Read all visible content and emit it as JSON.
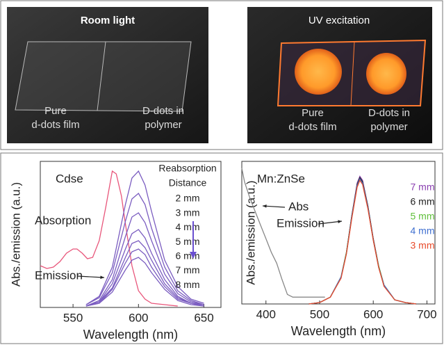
{
  "photos": [
    {
      "title": "Room light",
      "labels": [
        [
          "Pure",
          "d-dots film"
        ],
        [
          "D-dots in",
          "polymer"
        ]
      ]
    },
    {
      "title": "UV excitation",
      "labels": [
        [
          "Pure",
          "d-dots film"
        ],
        [
          "D-dots in",
          "polymer"
        ]
      ]
    }
  ],
  "chart_data": [
    {
      "type": "line",
      "title": "Cdse",
      "x_label": "Wavelength (nm)",
      "y_label": "Abs./emission (a.u.)",
      "legend_title": [
        "Reabsorption",
        "Distance"
      ],
      "annotations": [
        "Emission"
      ],
      "xlim": [
        525,
        663
      ],
      "xticks": [
        550,
        600,
        650
      ],
      "ylim": [
        0,
        1.05
      ],
      "series": [
        {
          "name": "Absorption",
          "color": "#e8557a",
          "x": [
            525,
            530,
            535,
            540,
            545,
            550,
            553,
            557,
            561,
            565,
            570,
            575,
            580,
            583,
            587,
            590,
            595,
            600,
            605,
            610,
            620,
            630
          ],
          "values": [
            0.3,
            0.28,
            0.29,
            0.33,
            0.39,
            0.42,
            0.42,
            0.39,
            0.35,
            0.36,
            0.48,
            0.72,
            0.98,
            0.96,
            0.8,
            0.6,
            0.3,
            0.12,
            0.06,
            0.03,
            0.02,
            0.01
          ]
        },
        {
          "name": "2 mm",
          "color": "#7a5cc0",
          "x": [
            560,
            570,
            580,
            590,
            595,
            600,
            605,
            610,
            620,
            630,
            640,
            650
          ],
          "values": [
            0.02,
            0.08,
            0.29,
            0.74,
            0.93,
            0.98,
            0.88,
            0.69,
            0.34,
            0.15,
            0.06,
            0.03
          ]
        },
        {
          "name": "3 mm",
          "color": "#7a5cc0",
          "x": [
            560,
            570,
            580,
            590,
            595,
            600,
            605,
            610,
            620,
            630,
            640,
            650
          ],
          "values": [
            0.02,
            0.07,
            0.25,
            0.62,
            0.78,
            0.82,
            0.74,
            0.57,
            0.29,
            0.12,
            0.05,
            0.02
          ]
        },
        {
          "name": "4 mm",
          "color": "#7a5cc0",
          "x": [
            560,
            570,
            580,
            590,
            595,
            600,
            605,
            610,
            620,
            630,
            640,
            650
          ],
          "values": [
            0.01,
            0.05,
            0.2,
            0.51,
            0.65,
            0.68,
            0.61,
            0.48,
            0.24,
            0.1,
            0.04,
            0.02
          ]
        },
        {
          "name": "5 mm",
          "color": "#7a5cc0",
          "x": [
            560,
            570,
            580,
            590,
            595,
            600,
            605,
            610,
            620,
            630,
            640,
            650
          ],
          "values": [
            0.01,
            0.04,
            0.17,
            0.42,
            0.53,
            0.56,
            0.5,
            0.39,
            0.2,
            0.08,
            0.03,
            0.02
          ]
        },
        {
          "name": "6 mm",
          "color": "#7a5cc0",
          "x": [
            560,
            570,
            580,
            590,
            595,
            600,
            605,
            610,
            620,
            630,
            640,
            650
          ],
          "values": [
            0.01,
            0.04,
            0.14,
            0.36,
            0.46,
            0.48,
            0.43,
            0.34,
            0.17,
            0.07,
            0.03,
            0.01
          ]
        },
        {
          "name": "7 mm",
          "color": "#7a5cc0",
          "x": [
            560,
            570,
            580,
            590,
            595,
            600,
            605,
            610,
            620,
            630,
            640,
            650
          ],
          "values": [
            0.01,
            0.03,
            0.13,
            0.32,
            0.4,
            0.42,
            0.38,
            0.29,
            0.15,
            0.06,
            0.03,
            0.01
          ]
        },
        {
          "name": "8 mm",
          "color": "#7a5cc0",
          "x": [
            560,
            570,
            580,
            590,
            595,
            600,
            605,
            610,
            620,
            630,
            640,
            650
          ],
          "values": [
            0.01,
            0.03,
            0.11,
            0.27,
            0.34,
            0.36,
            0.32,
            0.25,
            0.13,
            0.05,
            0.02,
            0.01
          ]
        }
      ]
    },
    {
      "type": "line",
      "title": "Mn:ZnSe",
      "x_label": "Wavelength (nm)",
      "y_label": "Abs./emission (a.u.)",
      "annotations": [
        "Emission"
      ],
      "xlim": [
        355,
        715
      ],
      "xticks": [
        400,
        500,
        600,
        700
      ],
      "ylim": [
        0,
        1.05
      ],
      "series": [
        {
          "name": "Abs",
          "color": "#888888",
          "x": [
            355,
            360,
            370,
            380,
            390,
            400,
            410,
            420,
            430,
            440,
            450,
            480,
            510
          ],
          "values": [
            1.0,
            0.9,
            0.78,
            0.68,
            0.58,
            0.48,
            0.38,
            0.3,
            0.18,
            0.07,
            0.05,
            0.05,
            0.05
          ]
        },
        {
          "name": "7 mm",
          "color": "#8a3fb0",
          "x": [
            480,
            500,
            520,
            540,
            550,
            560,
            570,
            575,
            580,
            590,
            600,
            610,
            620,
            640,
            660,
            680
          ],
          "values": [
            0.0,
            0.01,
            0.05,
            0.2,
            0.38,
            0.65,
            0.89,
            0.94,
            0.91,
            0.72,
            0.48,
            0.28,
            0.14,
            0.03,
            0.01,
            0.0
          ]
        },
        {
          "name": "6 mm",
          "color": "#222222",
          "x": [
            480,
            500,
            520,
            540,
            550,
            560,
            570,
            575,
            580,
            590,
            600,
            610,
            620,
            640,
            660,
            680
          ],
          "values": [
            0.0,
            0.01,
            0.05,
            0.2,
            0.38,
            0.65,
            0.88,
            0.93,
            0.9,
            0.72,
            0.48,
            0.28,
            0.14,
            0.03,
            0.01,
            0.0
          ]
        },
        {
          "name": "5 mm",
          "color": "#5fbf3a",
          "x": [
            480,
            500,
            520,
            540,
            550,
            560,
            570,
            575,
            580,
            590,
            600,
            610,
            620,
            640,
            660,
            680
          ],
          "values": [
            0.0,
            0.01,
            0.05,
            0.2,
            0.38,
            0.64,
            0.87,
            0.92,
            0.89,
            0.71,
            0.47,
            0.28,
            0.14,
            0.03,
            0.01,
            0.0
          ]
        },
        {
          "name": "4 mm",
          "color": "#3f6fd0",
          "x": [
            480,
            500,
            520,
            540,
            550,
            560,
            570,
            575,
            580,
            590,
            600,
            610,
            620,
            640,
            660,
            680
          ],
          "values": [
            0.0,
            0.01,
            0.05,
            0.2,
            0.37,
            0.64,
            0.87,
            0.92,
            0.89,
            0.71,
            0.47,
            0.27,
            0.14,
            0.03,
            0.01,
            0.0
          ]
        },
        {
          "name": "3 mm",
          "color": "#e84a2a",
          "x": [
            480,
            500,
            520,
            540,
            550,
            560,
            570,
            575,
            580,
            590,
            600,
            610,
            620,
            640,
            660,
            680
          ],
          "values": [
            0.0,
            0.01,
            0.05,
            0.19,
            0.37,
            0.63,
            0.86,
            0.91,
            0.88,
            0.7,
            0.47,
            0.27,
            0.13,
            0.03,
            0.01,
            0.0
          ]
        }
      ]
    }
  ]
}
